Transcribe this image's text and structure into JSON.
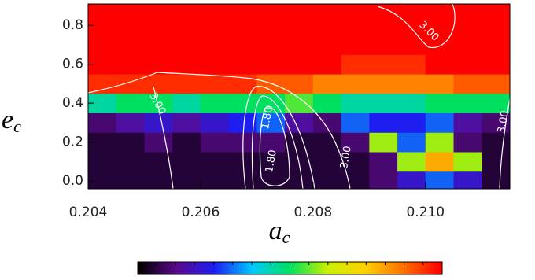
{
  "chart_data": {
    "type": "heatmap",
    "xlabel": "a",
    "xlabel_subscript": "c",
    "ylabel": "e",
    "ylabel_subscript": "c",
    "xlim": [
      0.204,
      0.2115
    ],
    "ylim": [
      -0.04,
      0.91
    ],
    "xticks": [
      0.204,
      0.206,
      0.208,
      {
        "value": 0.21,
        "label": "0.210"
      }
    ],
    "yticks": [
      {
        "value": 0,
        "label": "0.0"
      },
      0.2,
      0.4,
      0.6,
      0.8
    ],
    "x": [
      0.20425,
      0.20475,
      0.20525,
      0.20575,
      0.20625,
      0.20675,
      0.20725,
      0.20775,
      0.20825,
      0.20875,
      0.20925,
      0.20975,
      0.21025,
      0.21075,
      0.21125
    ],
    "y": [
      0.0,
      0.1,
      0.2,
      0.3,
      0.4,
      0.5,
      0.6,
      0.7,
      0.8,
      0.9
    ],
    "z": [
      [
        0.05,
        0.05,
        0.05,
        0.05,
        0.05,
        0.05,
        0.05,
        0.05,
        0.05,
        0.05,
        0.1,
        0.2,
        0.3,
        0.2,
        0.05
      ],
      [
        0.05,
        0.05,
        0.05,
        0.05,
        0.05,
        0.05,
        0.05,
        0.05,
        0.05,
        0.05,
        0.1,
        0.6,
        0.8,
        0.6,
        0.05
      ],
      [
        0.05,
        0.05,
        0.1,
        0.05,
        0.1,
        0.1,
        0.1,
        0.05,
        0.05,
        0.1,
        0.6,
        0.3,
        0.6,
        0.1,
        0.05
      ],
      [
        0.1,
        0.15,
        0.2,
        0.15,
        0.2,
        0.25,
        0.3,
        0.15,
        0.1,
        0.3,
        0.25,
        0.25,
        0.3,
        0.15,
        0.1
      ],
      [
        0.45,
        0.5,
        0.5,
        0.45,
        0.5,
        0.5,
        0.5,
        0.55,
        0.5,
        0.45,
        0.45,
        0.45,
        0.5,
        0.5,
        0.5
      ],
      [
        0.95,
        0.95,
        0.95,
        0.95,
        0.95,
        0.95,
        0.9,
        0.9,
        0.85,
        0.85,
        0.85,
        0.85,
        0.85,
        0.9,
        0.9
      ],
      [
        1,
        1,
        1,
        1,
        1,
        1,
        1,
        1,
        1,
        0.95,
        0.95,
        0.95,
        1,
        1,
        1
      ],
      [
        1,
        1,
        1,
        1,
        1,
        1,
        1,
        1,
        1,
        1,
        1,
        1,
        1,
        1,
        1
      ],
      [
        1,
        1,
        1,
        1,
        1,
        1,
        1,
        1,
        1,
        1,
        1,
        1,
        1,
        1,
        1
      ],
      [
        1,
        1,
        1,
        1,
        1,
        1,
        1,
        1,
        1,
        1,
        1,
        1,
        1,
        1,
        1
      ]
    ],
    "zlim": [
      0,
      1
    ],
    "colormap": [
      "#000000",
      "#5a0a8c",
      "#1e1ef0",
      "#00c8ff",
      "#00e060",
      "#c8f000",
      "#ffd000",
      "#ff7000",
      "#ff0000"
    ],
    "annotations": [
      "3.00",
      "1.80",
      "1.80",
      "3.00",
      "3.00",
      "3.00"
    ]
  }
}
